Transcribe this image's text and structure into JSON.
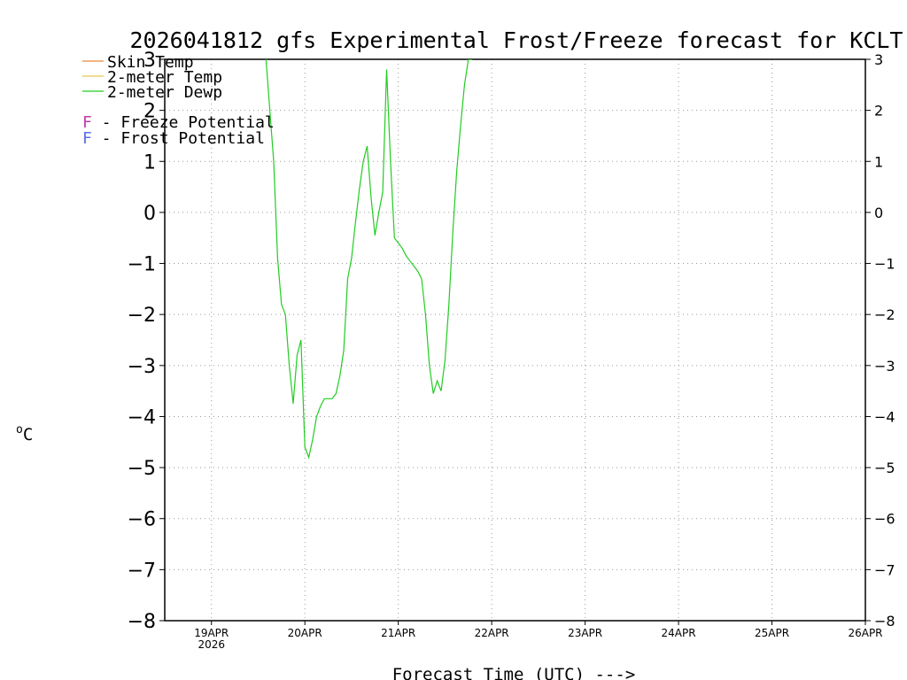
{
  "colors": {
    "skin": "#e8883a",
    "temp": "#e6c84a",
    "dewp": "#22cc22",
    "freeze": "#c33caa",
    "frost": "#5a6ee6",
    "grid": "#9a9a9a"
  },
  "chart_data": {
    "type": "line",
    "title": "2026041812 gfs Experimental Frost/Freeze forecast for KCLT",
    "ylabel_unit": "C",
    "ylabel_degree": "o",
    "xlabel": "Forecast Time (UTC) --->",
    "ylim": [
      -8,
      3
    ],
    "yticks": [
      -8,
      -7,
      -6,
      -5,
      -4,
      -3,
      -2,
      -1,
      0,
      1,
      2,
      3
    ],
    "ytick_labels": [
      "−8",
      "−7",
      "−6",
      "−5",
      "−4",
      "−3",
      "−2",
      "−1",
      "0",
      "1",
      "2",
      "3"
    ],
    "xlim_hours": [
      0,
      180
    ],
    "xticks": [
      {
        "hour": 12,
        "label": "19APR",
        "sublabel": "2026"
      },
      {
        "hour": 36,
        "label": "20APR",
        "sublabel": ""
      },
      {
        "hour": 60,
        "label": "21APR",
        "sublabel": ""
      },
      {
        "hour": 84,
        "label": "22APR",
        "sublabel": ""
      },
      {
        "hour": 108,
        "label": "23APR",
        "sublabel": ""
      },
      {
        "hour": 132,
        "label": "24APR",
        "sublabel": ""
      },
      {
        "hour": 156,
        "label": "25APR",
        "sublabel": ""
      },
      {
        "hour": 180,
        "label": "26APR",
        "sublabel": ""
      }
    ],
    "legend": [
      {
        "label": "Skin Temp",
        "color_key": "skin"
      },
      {
        "label": "2-meter Temp",
        "color_key": "temp"
      },
      {
        "label": "2-meter Dewp",
        "color_key": "dewp"
      }
    ],
    "markers_legend": [
      {
        "letter": "F",
        "text": " - Freeze Potential",
        "color_key": "freeze"
      },
      {
        "letter": "F",
        "text": " - Frost Potential",
        "color_key": "frost"
      }
    ],
    "series": [
      {
        "name": "2-meter Dewp",
        "color_key": "dewp",
        "x": [
          26,
          28,
          29,
          30,
          31,
          32,
          33,
          34,
          35,
          36,
          37,
          38,
          39,
          40,
          41,
          42,
          43,
          44,
          45,
          46,
          47,
          48,
          49,
          50,
          51,
          52,
          53,
          54,
          55,
          56,
          57,
          58,
          59,
          60,
          61,
          62,
          63,
          64,
          65,
          66,
          67,
          68,
          69,
          70,
          71,
          72,
          73,
          74,
          75,
          76,
          77,
          78,
          79
        ],
        "y": [
          3.0,
          1.0,
          -0.9,
          -1.8,
          -2.0,
          -3.0,
          -3.75,
          -2.8,
          -2.5,
          -4.6,
          -4.8,
          -4.45,
          -4.0,
          -3.8,
          -3.65,
          -3.65,
          -3.65,
          -3.55,
          -3.2,
          -2.7,
          -1.3,
          -0.9,
          -0.2,
          0.45,
          1.0,
          1.3,
          0.3,
          -0.45,
          0.0,
          0.4,
          2.8,
          1.0,
          -0.5,
          -0.6,
          -0.7,
          -0.85,
          -0.95,
          -1.05,
          -1.15,
          -1.3,
          -2.0,
          -3.0,
          -3.55,
          -3.3,
          -3.5,
          -2.9,
          -1.8,
          -0.4,
          0.8,
          1.7,
          2.5,
          3.0,
          3.0
        ]
      }
    ]
  }
}
